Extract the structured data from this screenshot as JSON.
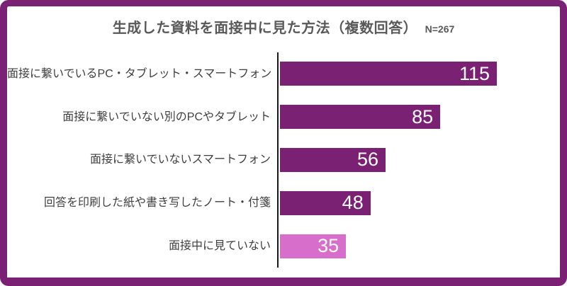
{
  "header": {
    "title": "生成した資料を面接中に見た方法（複数回答）",
    "sample_label": "N=267",
    "title_color": "#595959"
  },
  "frame": {
    "border_color": "#7B2173",
    "background_color": "#FFFFFF"
  },
  "chart_data": {
    "type": "bar",
    "orientation": "horizontal",
    "title": "生成した資料を面接中に見た方法（複数回答）",
    "subtitle": "N=267",
    "categories": [
      "面接に繋いでいるPC・タブレット・スマートフォン",
      "面接に繋いでいない別のPCやタブレット",
      "面接に繋いでいないスマートフォン",
      "回答を印刷した紙や書き写したノート・付箋",
      "面接中に見ていない"
    ],
    "values": [
      115,
      85,
      56,
      48,
      35
    ],
    "bar_colors": [
      "#7B2173",
      "#7B2173",
      "#7B2173",
      "#7B2173",
      "#D76ECB"
    ],
    "value_label_color": "#FFFFFF",
    "axis_color": "#1A1A1A",
    "xlim": [
      0,
      129
    ],
    "grid": false,
    "legend": false,
    "data_labels": "inside-end"
  }
}
